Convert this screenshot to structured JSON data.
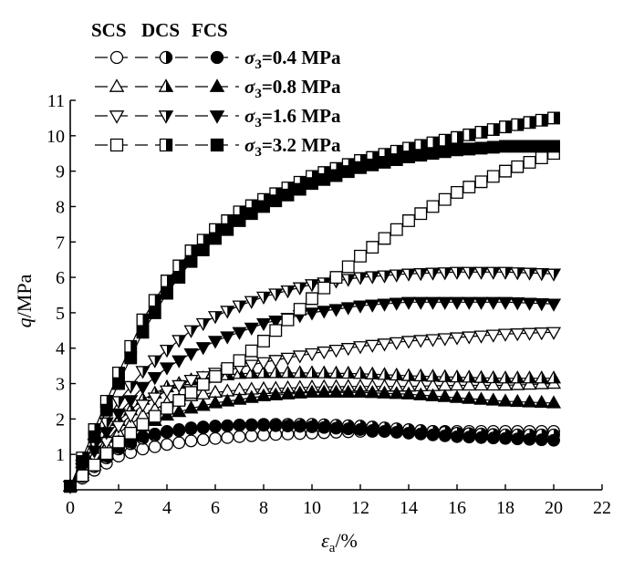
{
  "chart_data": {
    "type": "scatter",
    "xlabel": "εa/%",
    "ylabel": "q/MPa",
    "xlim": [
      0,
      22
    ],
    "ylim": [
      0,
      11
    ],
    "xticks": [
      "0",
      "2",
      "4",
      "6",
      "8",
      "10",
      "12",
      "14",
      "16",
      "18",
      "20",
      "22"
    ],
    "yticks": [
      "1",
      "2",
      "3",
      "4",
      "5",
      "6",
      "7",
      "8",
      "9",
      "10",
      "11"
    ],
    "grid": false,
    "legend_position": "top-left",
    "legend_header": [
      "SCS",
      "DCS",
      "FCS"
    ],
    "legend_entries": [
      {
        "label": "σ3=0.4 MPa",
        "shape": "circle"
      },
      {
        "label": "σ3=0.8 MPa",
        "shape": "triangle-up"
      },
      {
        "label": "σ3=1.6 MPa",
        "shape": "triangle-down"
      },
      {
        "label": "σ3=3.2 MPa",
        "shape": "square"
      }
    ],
    "series": [
      {
        "confining_MPa": 0.4,
        "group": "SCS",
        "shape": "circle",
        "fill": "open",
        "x": [
          0,
          1,
          2,
          3,
          4,
          5,
          6,
          7,
          8,
          10,
          12,
          14,
          16,
          18,
          20
        ],
        "y": [
          0.1,
          0.55,
          0.95,
          1.15,
          1.28,
          1.38,
          1.45,
          1.5,
          1.55,
          1.6,
          1.65,
          1.65,
          1.65,
          1.65,
          1.65
        ]
      },
      {
        "confining_MPa": 0.4,
        "group": "DCS",
        "shape": "circle",
        "fill": "half",
        "x": [
          0,
          1,
          2,
          3,
          4,
          5,
          6,
          7,
          8,
          10,
          12,
          14,
          16,
          18,
          20
        ],
        "y": [
          0.1,
          0.65,
          1.15,
          1.45,
          1.62,
          1.72,
          1.78,
          1.83,
          1.85,
          1.85,
          1.8,
          1.7,
          1.6,
          1.55,
          1.55
        ]
      },
      {
        "confining_MPa": 0.4,
        "group": "FCS",
        "shape": "circle",
        "fill": "solid",
        "x": [
          0,
          1,
          2,
          3,
          4,
          5,
          6,
          7,
          8,
          10,
          12,
          14,
          16,
          18,
          20
        ],
        "y": [
          0.1,
          0.7,
          1.2,
          1.5,
          1.65,
          1.75,
          1.8,
          1.82,
          1.82,
          1.78,
          1.7,
          1.6,
          1.5,
          1.45,
          1.4
        ]
      },
      {
        "confining_MPa": 0.8,
        "group": "SCS",
        "shape": "triangle-up",
        "fill": "open",
        "x": [
          0,
          1,
          2,
          3,
          4,
          5,
          6,
          7,
          8,
          10,
          12,
          14,
          16,
          18,
          20
        ],
        "y": [
          0.1,
          0.85,
          1.6,
          2.1,
          2.45,
          2.65,
          2.75,
          2.82,
          2.85,
          2.9,
          2.92,
          2.92,
          2.95,
          2.95,
          3.0
        ]
      },
      {
        "confining_MPa": 0.8,
        "group": "DCS",
        "shape": "triangle-up",
        "fill": "half",
        "x": [
          0,
          1,
          2,
          3,
          4,
          5,
          6,
          7,
          8,
          10,
          12,
          14,
          16,
          18,
          20
        ],
        "y": [
          0.1,
          1.0,
          1.95,
          2.55,
          2.9,
          3.1,
          3.2,
          3.28,
          3.3,
          3.3,
          3.28,
          3.22,
          3.18,
          3.15,
          3.15
        ]
      },
      {
        "confining_MPa": 0.8,
        "group": "FCS",
        "shape": "triangle-up",
        "fill": "solid",
        "x": [
          0,
          1,
          2,
          3,
          4,
          5,
          6,
          7,
          8,
          10,
          12,
          14,
          16,
          18,
          20
        ],
        "y": [
          0.1,
          0.7,
          1.35,
          1.8,
          2.1,
          2.3,
          2.45,
          2.55,
          2.65,
          2.75,
          2.75,
          2.7,
          2.6,
          2.5,
          2.45
        ]
      },
      {
        "confining_MPa": 1.6,
        "group": "SCS",
        "shape": "triangle-down",
        "fill": "open",
        "x": [
          0,
          1,
          2,
          3,
          4,
          5,
          6,
          7,
          8,
          10,
          12,
          14,
          16,
          18,
          20
        ],
        "y": [
          0.1,
          0.9,
          1.8,
          2.4,
          2.8,
          3.1,
          3.3,
          3.45,
          3.6,
          3.85,
          4.05,
          4.2,
          4.3,
          4.4,
          4.45
        ]
      },
      {
        "confining_MPa": 1.6,
        "group": "DCS",
        "shape": "triangle-down",
        "fill": "half",
        "x": [
          0,
          1,
          2,
          3,
          4,
          5,
          6,
          7,
          8,
          10,
          12,
          14,
          16,
          18,
          20
        ],
        "y": [
          0.1,
          1.3,
          2.5,
          3.35,
          3.95,
          4.5,
          4.9,
          5.2,
          5.45,
          5.8,
          6.0,
          6.1,
          6.15,
          6.15,
          6.1
        ]
      },
      {
        "confining_MPa": 1.6,
        "group": "FCS",
        "shape": "triangle-down",
        "fill": "solid",
        "x": [
          0,
          1,
          2,
          3,
          4,
          5,
          6,
          7,
          8,
          10,
          12,
          14,
          16,
          18,
          20
        ],
        "y": [
          0.1,
          1.1,
          2.15,
          2.9,
          3.45,
          3.85,
          4.2,
          4.45,
          4.7,
          5.0,
          5.2,
          5.3,
          5.3,
          5.3,
          5.25
        ]
      },
      {
        "confining_MPa": 3.2,
        "group": "SCS",
        "shape": "square",
        "fill": "open",
        "x": [
          0,
          1,
          2,
          3,
          4,
          5,
          6,
          7,
          8,
          10,
          12,
          14,
          16,
          18,
          20
        ],
        "y": [
          0.1,
          0.7,
          1.35,
          1.85,
          2.3,
          2.75,
          3.2,
          3.65,
          4.2,
          5.4,
          6.6,
          7.6,
          8.4,
          9.0,
          9.5
        ]
      },
      {
        "confining_MPa": 3.2,
        "group": "DCS",
        "shape": "square",
        "fill": "half",
        "x": [
          0,
          1,
          2,
          3,
          4,
          5,
          6,
          7,
          8,
          10,
          12,
          14,
          16,
          18,
          20
        ],
        "y": [
          0.1,
          1.7,
          3.3,
          4.8,
          5.9,
          6.75,
          7.35,
          7.85,
          8.2,
          8.85,
          9.3,
          9.65,
          9.95,
          10.25,
          10.5
        ]
      },
      {
        "confining_MPa": 3.2,
        "group": "FCS",
        "shape": "square",
        "fill": "solid",
        "x": [
          0,
          1,
          2,
          3,
          4,
          5,
          6,
          7,
          8,
          10,
          12,
          14,
          16,
          18,
          20
        ],
        "y": [
          0.1,
          1.5,
          3.0,
          4.45,
          5.55,
          6.45,
          7.1,
          7.6,
          8.0,
          8.65,
          9.1,
          9.4,
          9.6,
          9.7,
          9.7
        ]
      }
    ]
  }
}
